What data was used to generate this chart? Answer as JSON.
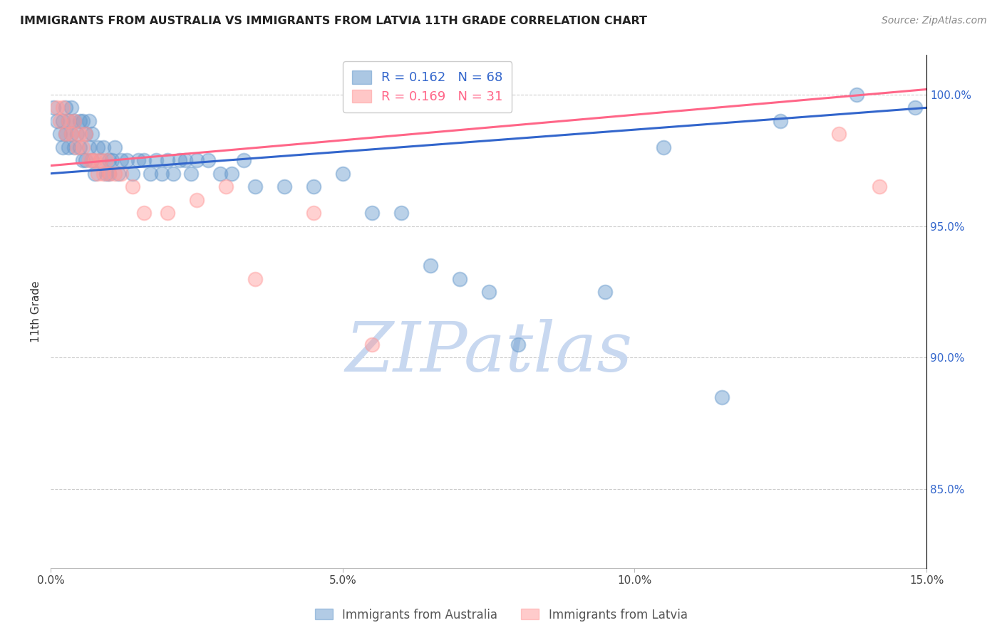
{
  "title": "IMMIGRANTS FROM AUSTRALIA VS IMMIGRANTS FROM LATVIA 11TH GRADE CORRELATION CHART",
  "source": "Source: ZipAtlas.com",
  "ylabel": "11th Grade",
  "xlim": [
    0.0,
    15.0
  ],
  "ylim": [
    82.0,
    101.5
  ],
  "ytick_values": [
    85.0,
    90.0,
    95.0,
    100.0
  ],
  "xtick_values": [
    0.0,
    5.0,
    10.0,
    15.0
  ],
  "australia_color": "#6699CC",
  "latvia_color": "#FF9999",
  "australia_R": 0.162,
  "australia_N": 68,
  "latvia_R": 0.169,
  "latvia_N": 31,
  "australia_line_color": "#3366CC",
  "latvia_line_color": "#FF6688",
  "watermark_color": "#C8D8F0",
  "aus_line_y0": 97.0,
  "aus_line_y1": 99.5,
  "lat_line_y0": 97.3,
  "lat_line_y1": 100.2,
  "australia_x": [
    0.05,
    0.1,
    0.15,
    0.2,
    0.2,
    0.25,
    0.25,
    0.3,
    0.3,
    0.35,
    0.35,
    0.4,
    0.4,
    0.45,
    0.5,
    0.5,
    0.55,
    0.55,
    0.6,
    0.6,
    0.65,
    0.65,
    0.7,
    0.7,
    0.75,
    0.8,
    0.85,
    0.9,
    0.95,
    1.0,
    1.0,
    1.05,
    1.1,
    1.15,
    1.2,
    1.3,
    1.4,
    1.5,
    1.6,
    1.7,
    1.8,
    1.9,
    2.0,
    2.1,
    2.2,
    2.3,
    2.4,
    2.5,
    2.7,
    2.9,
    3.1,
    3.3,
    3.5,
    4.0,
    4.5,
    5.0,
    5.5,
    6.0,
    6.5,
    7.0,
    7.5,
    8.0,
    9.5,
    10.5,
    11.5,
    12.5,
    13.8,
    14.8
  ],
  "australia_y": [
    99.5,
    99.0,
    98.5,
    99.0,
    98.0,
    99.5,
    98.5,
    99.0,
    98.0,
    99.5,
    98.5,
    99.0,
    98.0,
    98.5,
    99.0,
    98.0,
    99.0,
    97.5,
    98.5,
    97.5,
    99.0,
    98.0,
    98.5,
    97.5,
    97.0,
    98.0,
    97.5,
    98.0,
    97.0,
    97.5,
    97.0,
    97.5,
    98.0,
    97.0,
    97.5,
    97.5,
    97.0,
    97.5,
    97.5,
    97.0,
    97.5,
    97.0,
    97.5,
    97.0,
    97.5,
    97.5,
    97.0,
    97.5,
    97.5,
    97.0,
    97.0,
    97.5,
    96.5,
    96.5,
    96.5,
    97.0,
    95.5,
    95.5,
    93.5,
    93.0,
    92.5,
    90.5,
    92.5,
    98.0,
    88.5,
    99.0,
    100.0,
    99.5
  ],
  "latvia_x": [
    0.1,
    0.15,
    0.2,
    0.25,
    0.3,
    0.35,
    0.4,
    0.45,
    0.5,
    0.55,
    0.6,
    0.65,
    0.7,
    0.75,
    0.8,
    0.85,
    0.9,
    0.95,
    1.0,
    1.1,
    1.2,
    1.4,
    1.6,
    2.0,
    2.5,
    3.0,
    3.5,
    4.5,
    5.5,
    13.5,
    14.2
  ],
  "latvia_y": [
    99.5,
    99.0,
    99.5,
    98.5,
    99.0,
    98.5,
    99.0,
    98.0,
    98.5,
    98.0,
    98.5,
    97.5,
    97.5,
    97.5,
    97.0,
    97.5,
    97.0,
    97.5,
    97.0,
    97.0,
    97.0,
    96.5,
    95.5,
    95.5,
    96.0,
    96.5,
    93.0,
    95.5,
    90.5,
    98.5,
    96.5
  ]
}
